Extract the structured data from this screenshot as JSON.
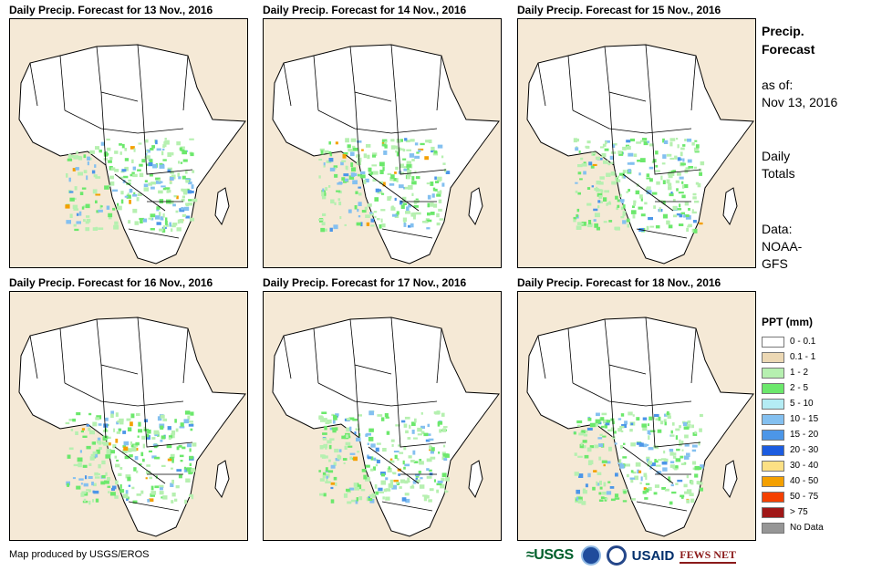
{
  "panels": [
    {
      "title": "Daily Precip. Forecast for 13 Nov., 2016"
    },
    {
      "title": "Daily Precip. Forecast for 14 Nov., 2016"
    },
    {
      "title": "Daily Precip. Forecast for 15 Nov., 2016"
    },
    {
      "title": "Daily Precip. Forecast for 16 Nov., 2016"
    },
    {
      "title": "Daily Precip. Forecast for 17 Nov., 2016"
    },
    {
      "title": "Daily Precip. Forecast for 18 Nov., 2016"
    }
  ],
  "side": {
    "title_line1": "Precip.",
    "title_line2": "Forecast",
    "asof_line1": "as of:",
    "asof_line2": "Nov 13, 2016",
    "totals_line1": "Daily",
    "totals_line2": "Totals",
    "data_line1": "Data:",
    "data_line2": "NOAA-",
    "data_line3": "GFS"
  },
  "legend": {
    "title": "PPT (mm)",
    "items": [
      {
        "label": "0 - 0.1",
        "color": "#ffffff"
      },
      {
        "label": "0.1 - 1",
        "color": "#ecd8b4"
      },
      {
        "label": "1 - 2",
        "color": "#b6f0b0"
      },
      {
        "label": "2 - 5",
        "color": "#6ce86c"
      },
      {
        "label": "5 - 10",
        "color": "#b4ecf4"
      },
      {
        "label": "10 - 15",
        "color": "#84c0f0"
      },
      {
        "label": "15 - 20",
        "color": "#4c96e8"
      },
      {
        "label": "20 - 30",
        "color": "#1c5ce0"
      },
      {
        "label": "30 - 40",
        "color": "#fce084"
      },
      {
        "label": "40 - 50",
        "color": "#f4a000"
      },
      {
        "label": "50 - 75",
        "color": "#f44000"
      },
      {
        "label": "> 75",
        "color": "#a01818"
      },
      {
        "label": "No Data",
        "color": "#969696"
      }
    ]
  },
  "credit": "Map produced by USGS/EROS",
  "logos": {
    "usgs": "≈USGS",
    "usaid": "USAID",
    "fews": "FEWS NET"
  }
}
